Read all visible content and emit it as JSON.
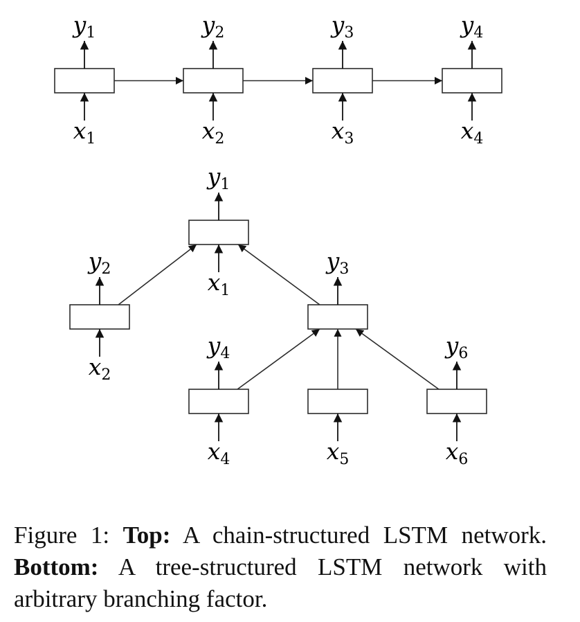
{
  "chain": {
    "nodes": [
      {
        "id": "c1",
        "output": {
          "base": "y",
          "sub": "1"
        },
        "input": {
          "base": "x",
          "sub": "1"
        }
      },
      {
        "id": "c2",
        "output": {
          "base": "y",
          "sub": "2"
        },
        "input": {
          "base": "x",
          "sub": "2"
        }
      },
      {
        "id": "c3",
        "output": {
          "base": "y",
          "sub": "3"
        },
        "input": {
          "base": "x",
          "sub": "3"
        }
      },
      {
        "id": "c4",
        "output": {
          "base": "y",
          "sub": "4"
        },
        "input": {
          "base": "x",
          "sub": "4"
        }
      }
    ],
    "edges": [
      [
        "c1",
        "c2"
      ],
      [
        "c2",
        "c3"
      ],
      [
        "c3",
        "c4"
      ]
    ]
  },
  "tree": {
    "nodes": [
      {
        "id": "t1",
        "output": {
          "base": "y",
          "sub": "1"
        },
        "input": {
          "base": "x",
          "sub": "1"
        }
      },
      {
        "id": "t2",
        "output": {
          "base": "y",
          "sub": "2"
        },
        "input": {
          "base": "x",
          "sub": "2"
        }
      },
      {
        "id": "t3",
        "output": {
          "base": "y",
          "sub": "3"
        },
        "input": null
      },
      {
        "id": "t4",
        "output": {
          "base": "y",
          "sub": "4"
        },
        "input": {
          "base": "x",
          "sub": "4"
        }
      },
      {
        "id": "t5",
        "output": null,
        "input": {
          "base": "x",
          "sub": "5"
        }
      },
      {
        "id": "t6",
        "output": {
          "base": "y",
          "sub": "6"
        },
        "input": {
          "base": "x",
          "sub": "6"
        }
      }
    ],
    "edges": [
      [
        "t2",
        "t1"
      ],
      [
        "t3",
        "t1"
      ],
      [
        "t4",
        "t3"
      ],
      [
        "t5",
        "t3"
      ],
      [
        "t6",
        "t3"
      ]
    ]
  },
  "caption": {
    "figure_label": "Figure 1:",
    "top_label": "Top:",
    "top_text": "A chain-structured LSTM network.",
    "bottom_label": "Bottom:",
    "bottom_text": "A tree-structured LSTM network with arbitrary branching factor."
  },
  "colors": {
    "stroke": "#2b2b2b",
    "text": "#111111",
    "background": "#ffffff"
  }
}
